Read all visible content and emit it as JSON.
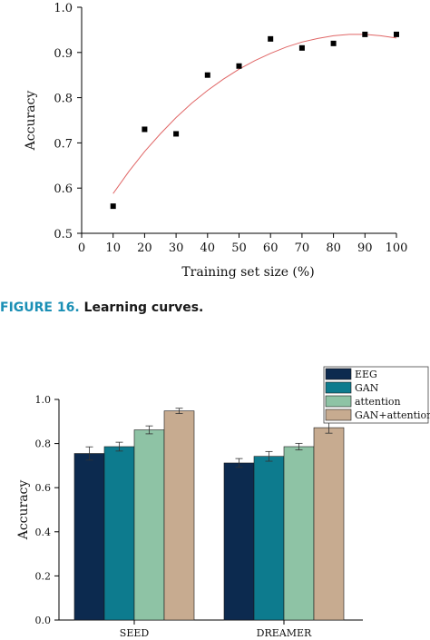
{
  "caption": {
    "label": "FIGURE 16.",
    "text": "Learning curves."
  },
  "chart_data": [
    {
      "type": "scatter",
      "title": "",
      "xlabel": "Training set size (%)",
      "ylabel": "Accuracy",
      "xlim": [
        0,
        100
      ],
      "ylim": [
        0.5,
        1.0
      ],
      "x_ticks": [
        "0",
        "10",
        "20",
        "30",
        "40",
        "50",
        "60",
        "70",
        "80",
        "90",
        "100"
      ],
      "y_ticks": [
        "0.5",
        "0.6",
        "0.7",
        "0.8",
        "0.9",
        "1.0"
      ],
      "points": {
        "x": [
          10,
          20,
          30,
          40,
          50,
          60,
          70,
          80,
          90,
          100
        ],
        "y": [
          0.56,
          0.73,
          0.72,
          0.85,
          0.87,
          0.93,
          0.91,
          0.92,
          0.94,
          0.94
        ]
      },
      "fit_curve": {
        "x": [
          10,
          15,
          20,
          25,
          30,
          35,
          40,
          45,
          50,
          55,
          60,
          65,
          70,
          75,
          80,
          85,
          90,
          95,
          100
        ],
        "y": [
          0.588,
          0.637,
          0.681,
          0.72,
          0.756,
          0.788,
          0.816,
          0.841,
          0.863,
          0.882,
          0.898,
          0.912,
          0.923,
          0.931,
          0.937,
          0.94,
          0.94,
          0.937,
          0.932
        ]
      },
      "colors": {
        "points": "#000000",
        "fit": "#e06666"
      },
      "grid": false
    },
    {
      "type": "bar",
      "title": "",
      "xlabel": "",
      "ylabel": "Accuracy",
      "ylim": [
        0.0,
        1.0
      ],
      "y_ticks": [
        "0.0",
        "0.2",
        "0.4",
        "0.6",
        "0.8",
        "1.0"
      ],
      "categories": [
        "SEED",
        "DREAMER"
      ],
      "series": [
        {
          "name": "EEG",
          "values": [
            0.755,
            0.712
          ],
          "errors": [
            0.03,
            0.02
          ],
          "color": "#0c2a4f"
        },
        {
          "name": "GAN",
          "values": [
            0.786,
            0.742
          ],
          "errors": [
            0.02,
            0.022
          ],
          "color": "#0d7b8e"
        },
        {
          "name": "attention",
          "values": [
            0.862,
            0.786
          ],
          "errors": [
            0.018,
            0.015
          ],
          "color": "#8ec3a5"
        },
        {
          "name": "GAN+attention",
          "values": [
            0.948,
            0.872
          ],
          "errors": [
            0.012,
            0.025
          ],
          "color": "#c7ab90"
        }
      ],
      "legend_position": "top-right",
      "grid": false
    }
  ]
}
